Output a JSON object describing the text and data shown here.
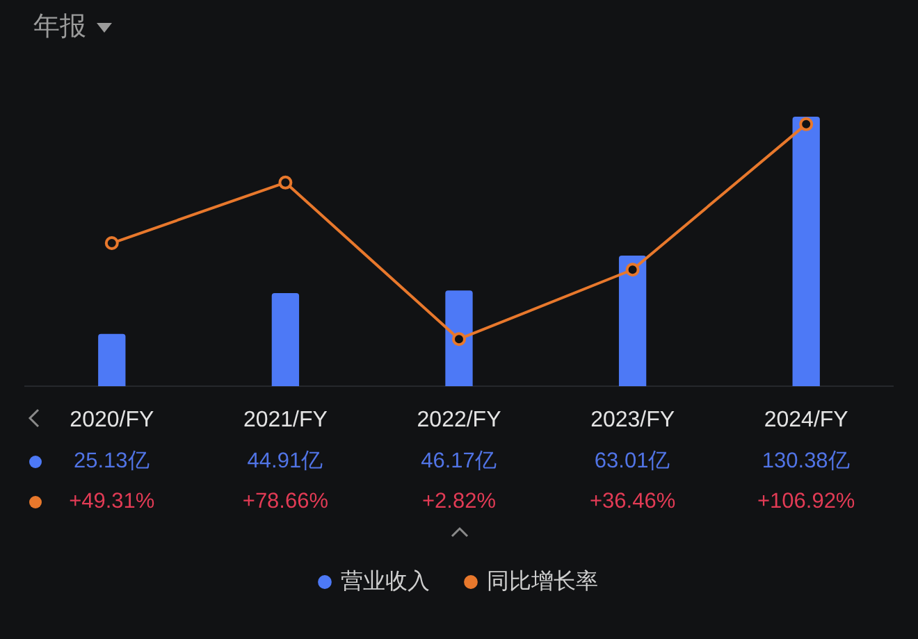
{
  "chart_data": {
    "type": "bar",
    "title": "年报",
    "categories": [
      "2020/FY",
      "2021/FY",
      "2022/FY",
      "2023/FY",
      "2024/FY"
    ],
    "series": [
      {
        "name": "营业收入",
        "color": "#4d79f6",
        "values": [
          25.13,
          44.91,
          46.17,
          63.01,
          130.38
        ],
        "value_labels": [
          "25.13亿",
          "44.91亿",
          "46.17亿",
          "63.01亿",
          "130.38亿"
        ]
      },
      {
        "name": "同比增长率",
        "type": "line",
        "axis": "y2",
        "color": "#e8782c",
        "values": [
          49.31,
          78.66,
          2.82,
          36.46,
          106.92
        ],
        "value_labels": [
          "+49.31%",
          "+78.66%",
          "+2.82%",
          "+36.46%",
          "+106.92%"
        ]
      }
    ],
    "tick_labels": "x",
    "legend": "bottom",
    "marker": "circle",
    "grid": false
  }
}
